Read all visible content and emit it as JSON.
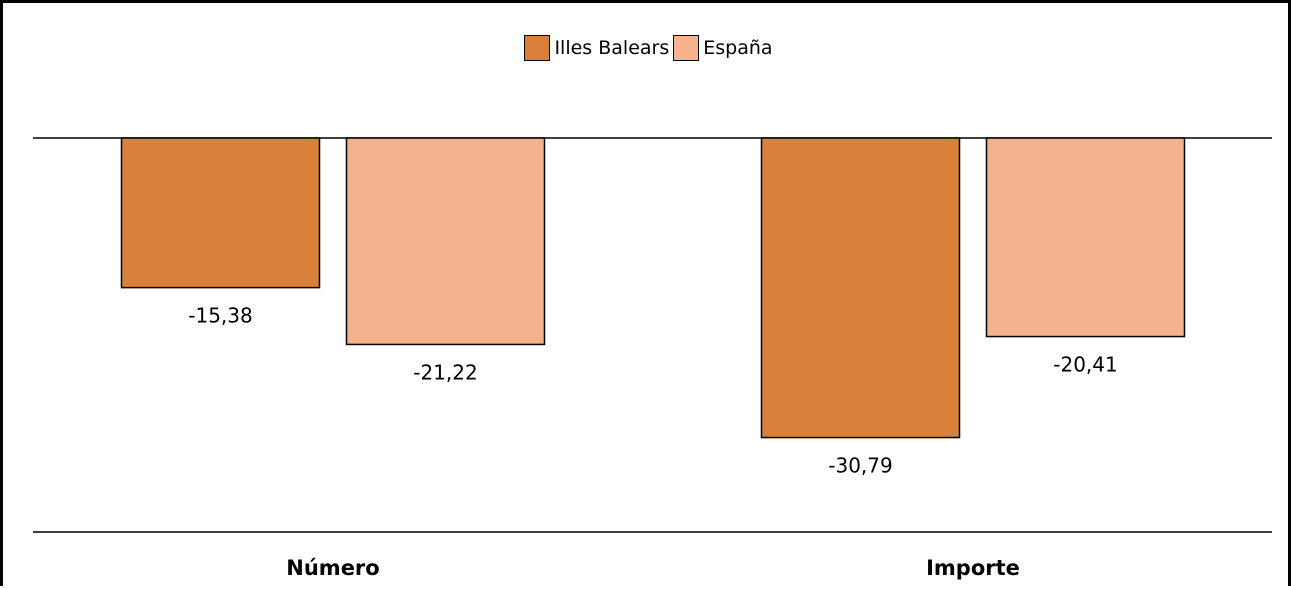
{
  "chart_data": {
    "type": "bar",
    "categories": [
      "Número",
      "Importe"
    ],
    "series": [
      {
        "name": "Illes Balears",
        "values": [
          -15.38,
          -30.79
        ],
        "labels": [
          "-15,38",
          "-30,79"
        ],
        "color": "#D9803A"
      },
      {
        "name": "España",
        "values": [
          -21.22,
          -20.41
        ],
        "labels": [
          "-21,22",
          "-20,41"
        ],
        "color": "#F4B28D"
      }
    ],
    "title": "",
    "xlabel": "",
    "ylabel": "",
    "ylim": [
      -40.5,
      0
    ],
    "legend_position": "top-center",
    "grid": false,
    "decimal_separator": ","
  }
}
